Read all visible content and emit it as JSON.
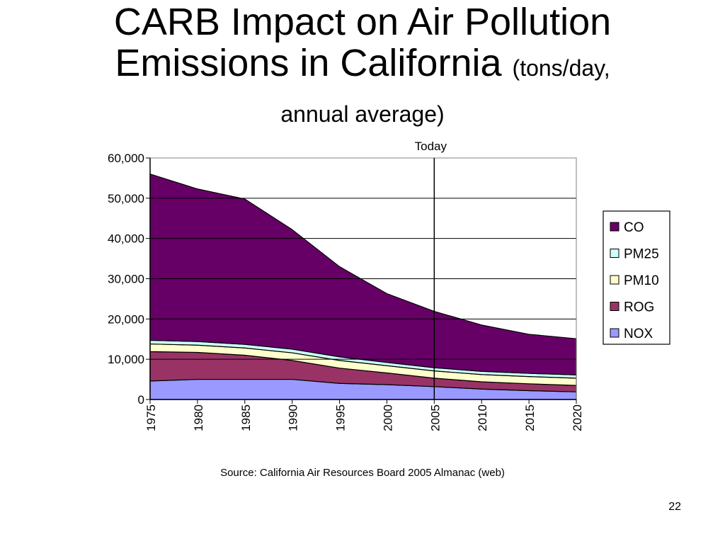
{
  "title": {
    "main_line1": "CARB Impact on Air Pollution",
    "main_line2": "Emissions in California",
    "sub_inline": "(tons/day,",
    "sub_line3": "annual average)"
  },
  "source": "Source:  California Air Resources Board 2005 Almanac (web)",
  "page_number": "22",
  "chart_data": {
    "type": "area",
    "stacked": true,
    "x": [
      1975,
      1980,
      1985,
      1990,
      1995,
      2000,
      2005,
      2010,
      2015,
      2020
    ],
    "x_tick_labels": [
      "1975",
      "1980",
      "1985",
      "1990",
      "1995",
      "2000",
      "2005",
      "2010",
      "2015",
      "2020"
    ],
    "ylim": [
      0,
      60000
    ],
    "y_tick_values": [
      0,
      10000,
      20000,
      30000,
      40000,
      50000,
      60000
    ],
    "y_tick_labels": [
      "0",
      "10,000",
      "20,000",
      "30,000",
      "40,000",
      "50,000",
      "60,000"
    ],
    "grid": "horizontal",
    "legend_position": "right",
    "annotation": {
      "label": "Today",
      "x": 2005
    },
    "series": [
      {
        "name": "NOX",
        "color": "#9999ff",
        "values": [
          4600,
          5000,
          5000,
          5000,
          4000,
          3700,
          3200,
          2600,
          2200,
          1900
        ]
      },
      {
        "name": "ROG",
        "color": "#993366",
        "values": [
          7300,
          6700,
          6000,
          4700,
          3800,
          2900,
          2100,
          1800,
          1700,
          1600
        ]
      },
      {
        "name": "PM10",
        "color": "#ffffcc",
        "values": [
          1900,
          1800,
          1800,
          1900,
          1900,
          1800,
          1800,
          1800,
          1800,
          1800
        ]
      },
      {
        "name": "PM25",
        "color": "#ccffff",
        "values": [
          900,
          900,
          900,
          900,
          900,
          800,
          800,
          800,
          800,
          800
        ]
      },
      {
        "name": "CO",
        "color": "#660066",
        "values": [
          41300,
          37900,
          36100,
          29700,
          22400,
          17100,
          14000,
          11500,
          9700,
          9000
        ]
      }
    ],
    "legend_order": [
      "CO",
      "PM25",
      "PM10",
      "ROG",
      "NOX"
    ]
  }
}
